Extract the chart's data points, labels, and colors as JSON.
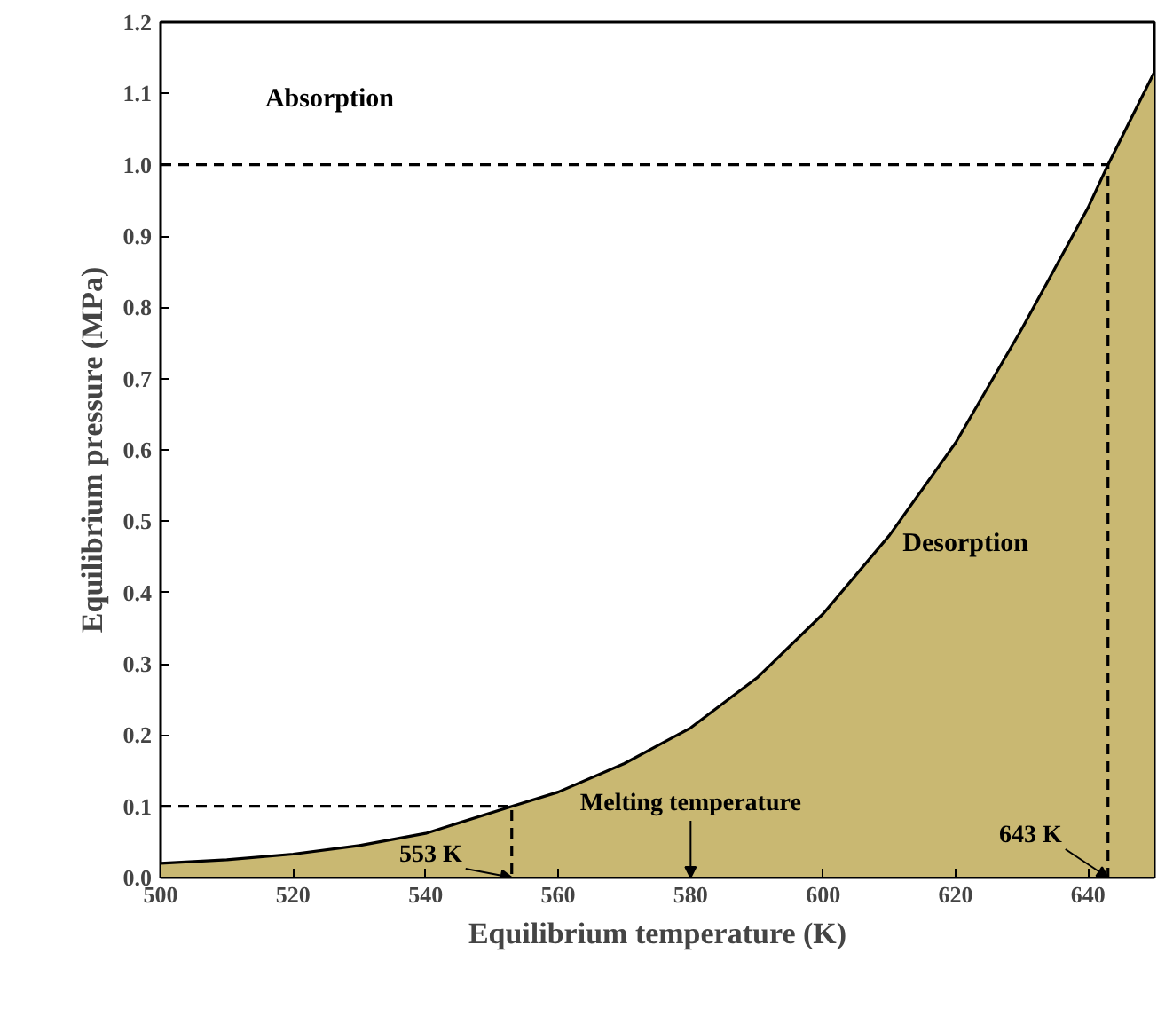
{
  "chart_data": {
    "type": "area",
    "xlabel": "Equilibrium temperature (K)",
    "ylabel": "Equilibrium pressure (MPa)",
    "xlim": [
      500,
      650
    ],
    "ylim": [
      0,
      1.2
    ],
    "xticks": [
      500,
      520,
      540,
      560,
      580,
      600,
      620,
      640
    ],
    "yticks": [
      {
        "value": 0,
        "label": "0.0"
      },
      0.1,
      0.2,
      0.3,
      0.4,
      0.5,
      0.6,
      0.7,
      0.8,
      0.9,
      {
        "value": 1,
        "label": "1.0"
      },
      1.1,
      1.2
    ],
    "grid": false,
    "series": [
      {
        "color": "#c9b872",
        "x": [
          500,
          510,
          520,
          530,
          540,
          553,
          560,
          570,
          580,
          590,
          600,
          610,
          620,
          630,
          640,
          643,
          650
        ],
        "values": [
          0.02,
          0.025,
          0.033,
          0.045,
          0.062,
          0.1,
          0.12,
          0.16,
          0.21,
          0.28,
          0.37,
          0.48,
          0.61,
          0.77,
          0.94,
          1.0,
          1.13
        ]
      },
      {
        "type": "line",
        "color": "#000000",
        "line_style": "dashed",
        "x": [
          500,
          553,
          553
        ],
        "values": [
          0.1,
          0.1,
          0
        ]
      },
      {
        "type": "line",
        "color": "#000000",
        "line_style": "dashed",
        "x": [
          500,
          643,
          643
        ],
        "values": [
          1.0,
          1.0,
          0
        ]
      }
    ],
    "annotations": [
      "Absorption",
      "Desorption",
      {
        "text": "Melting temperature",
        "x": 580,
        "y": 0
      },
      {
        "text": "553 K",
        "x": 553,
        "y": 0
      },
      {
        "text": "643 K",
        "x": 643,
        "y": 0
      }
    ]
  }
}
